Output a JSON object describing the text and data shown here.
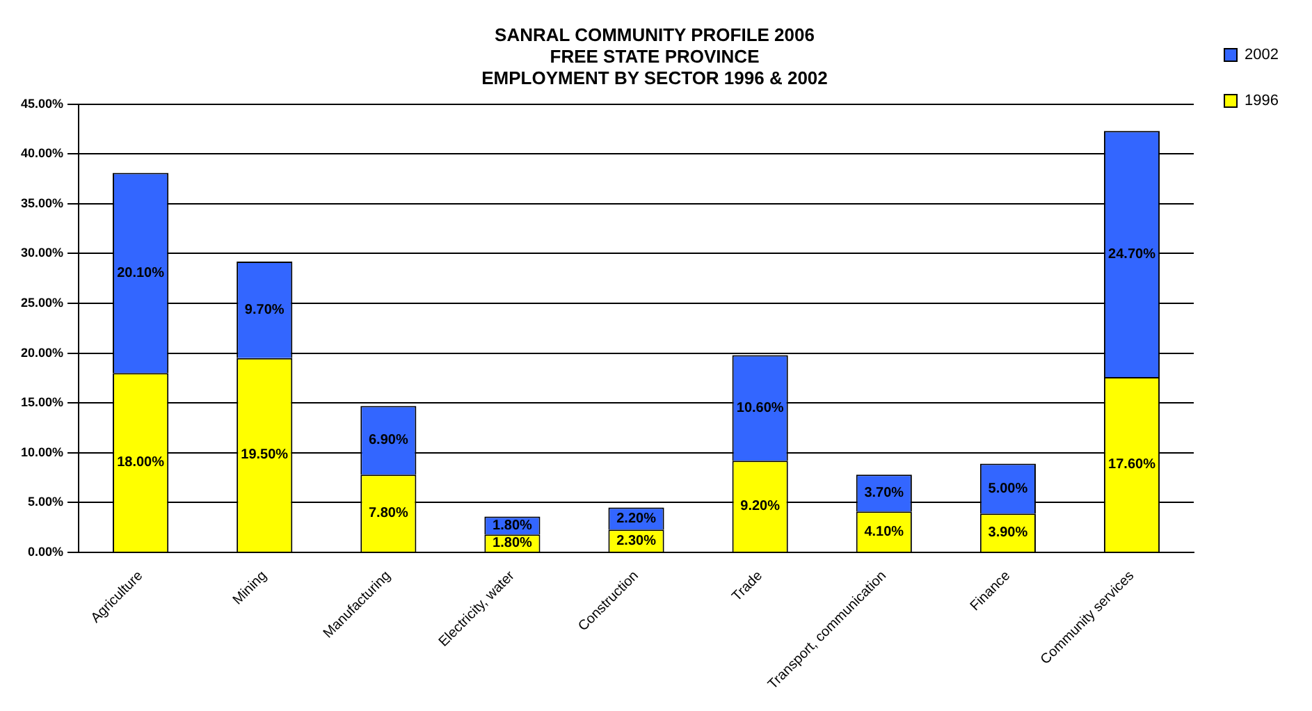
{
  "chart_data": {
    "type": "bar",
    "title": [
      "SANRAL COMMUNITY PROFILE 2006",
      "FREE STATE PROVINCE",
      "EMPLOYMENT BY SECTOR 1996 & 2002"
    ],
    "categories": [
      "Agriculture",
      "Mining",
      "Manufacturing",
      "Electricity, water",
      "Construction",
      "Trade",
      "Transport, communication",
      "Finance",
      "Community services"
    ],
    "stacked": true,
    "series": [
      {
        "name": "1996",
        "color": "#ffff00",
        "values": [
          18.0,
          19.5,
          7.8,
          1.8,
          2.3,
          9.2,
          4.1,
          3.9,
          17.6
        ],
        "value_labels": [
          "18.00%",
          "19.50%",
          "7.80%",
          "1.80%",
          "2.30%",
          "9.20%",
          "4.10%",
          "3.90%",
          "17.60%"
        ]
      },
      {
        "name": "2002",
        "color": "#3366ff",
        "values": [
          20.1,
          9.7,
          6.9,
          1.8,
          2.2,
          10.6,
          3.7,
          5.0,
          24.7
        ],
        "value_labels": [
          "20.10%",
          "9.70%",
          "6.90%",
          "1.80%",
          "2.20%",
          "10.60%",
          "3.70%",
          "5.00%",
          "24.70%"
        ]
      }
    ],
    "ylim": [
      0,
      45
    ],
    "yticks": [
      {
        "value": 0,
        "label": "0.00%"
      },
      {
        "value": 5,
        "label": "5.00%"
      },
      {
        "value": 10,
        "label": "10.00%"
      },
      {
        "value": 15,
        "label": "15.00%"
      },
      {
        "value": 20,
        "label": "20.00%"
      },
      {
        "value": 25,
        "label": "25.00%"
      },
      {
        "value": 30,
        "label": "30.00%"
      },
      {
        "value": 35,
        "label": "35.00%"
      },
      {
        "value": 40,
        "label": "40.00%"
      },
      {
        "value": 45,
        "label": "45.00%"
      }
    ],
    "grid": "y",
    "legend": "top right"
  }
}
